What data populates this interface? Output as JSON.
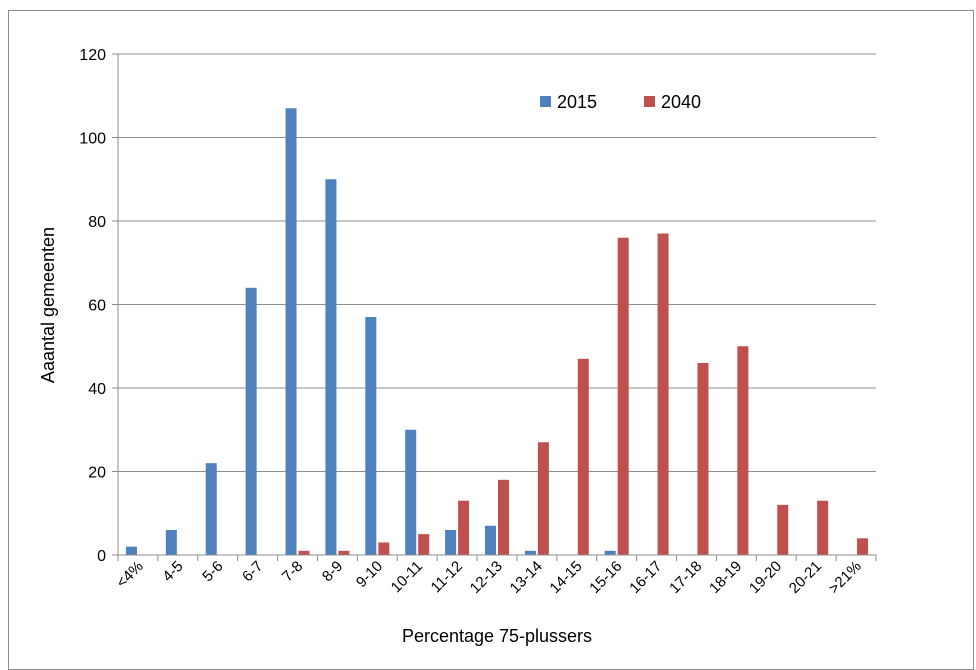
{
  "chart_data": {
    "type": "bar",
    "title": "",
    "xlabel": "Percentage 75-plussers",
    "ylabel": "Aaantal gemeenten",
    "ylim": [
      0,
      120
    ],
    "yticks": [
      0,
      20,
      40,
      60,
      80,
      100,
      120
    ],
    "grid": true,
    "legend_position": "top-right",
    "categories": [
      "<4%",
      "4-5",
      "5-6",
      "6-7",
      "7-8",
      "8-9",
      "9-10",
      "10-11",
      "11-12",
      "12-13",
      "13-14",
      "14-15",
      "15-16",
      "16-17",
      "17-18",
      "18-19",
      "19-20",
      "20-21",
      ">21%"
    ],
    "series": [
      {
        "name": "2015",
        "color": "#4f81bd",
        "values": [
          2,
          6,
          22,
          64,
          107,
          90,
          57,
          30,
          6,
          7,
          1,
          0,
          1,
          0,
          0,
          0,
          0,
          0,
          0
        ]
      },
      {
        "name": "2040",
        "color": "#c0504d",
        "values": [
          0,
          0,
          0,
          0,
          1,
          1,
          3,
          5,
          13,
          18,
          27,
          47,
          76,
          77,
          46,
          50,
          12,
          13,
          4
        ]
      }
    ]
  }
}
